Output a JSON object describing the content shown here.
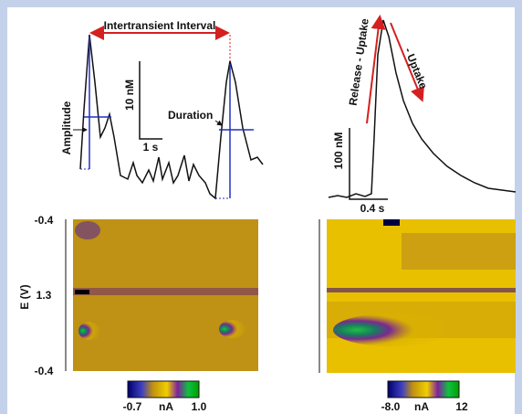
{
  "top_left": {
    "interval_label": "Intertransient Interval",
    "scale_y_label": "10 nM",
    "scale_x_label": "1 s",
    "amplitude_label": "Amplitude",
    "duration_label": "Duration"
  },
  "top_right": {
    "rise_label": "Release - Uptake",
    "fall_label": "- Uptake",
    "scale_y_label": "100 nM",
    "scale_x_label": "0.4 s"
  },
  "color_plots": {
    "y_axis_title": "E (V)",
    "y_ticks": [
      "-0.4",
      "1.3",
      "-0.4"
    ]
  },
  "colorbars": [
    {
      "min_label": "-0.7",
      "unit": "nA",
      "max_label": "1.0"
    },
    {
      "min_label": "-8.0",
      "unit": "nA",
      "max_label": "12"
    }
  ]
}
